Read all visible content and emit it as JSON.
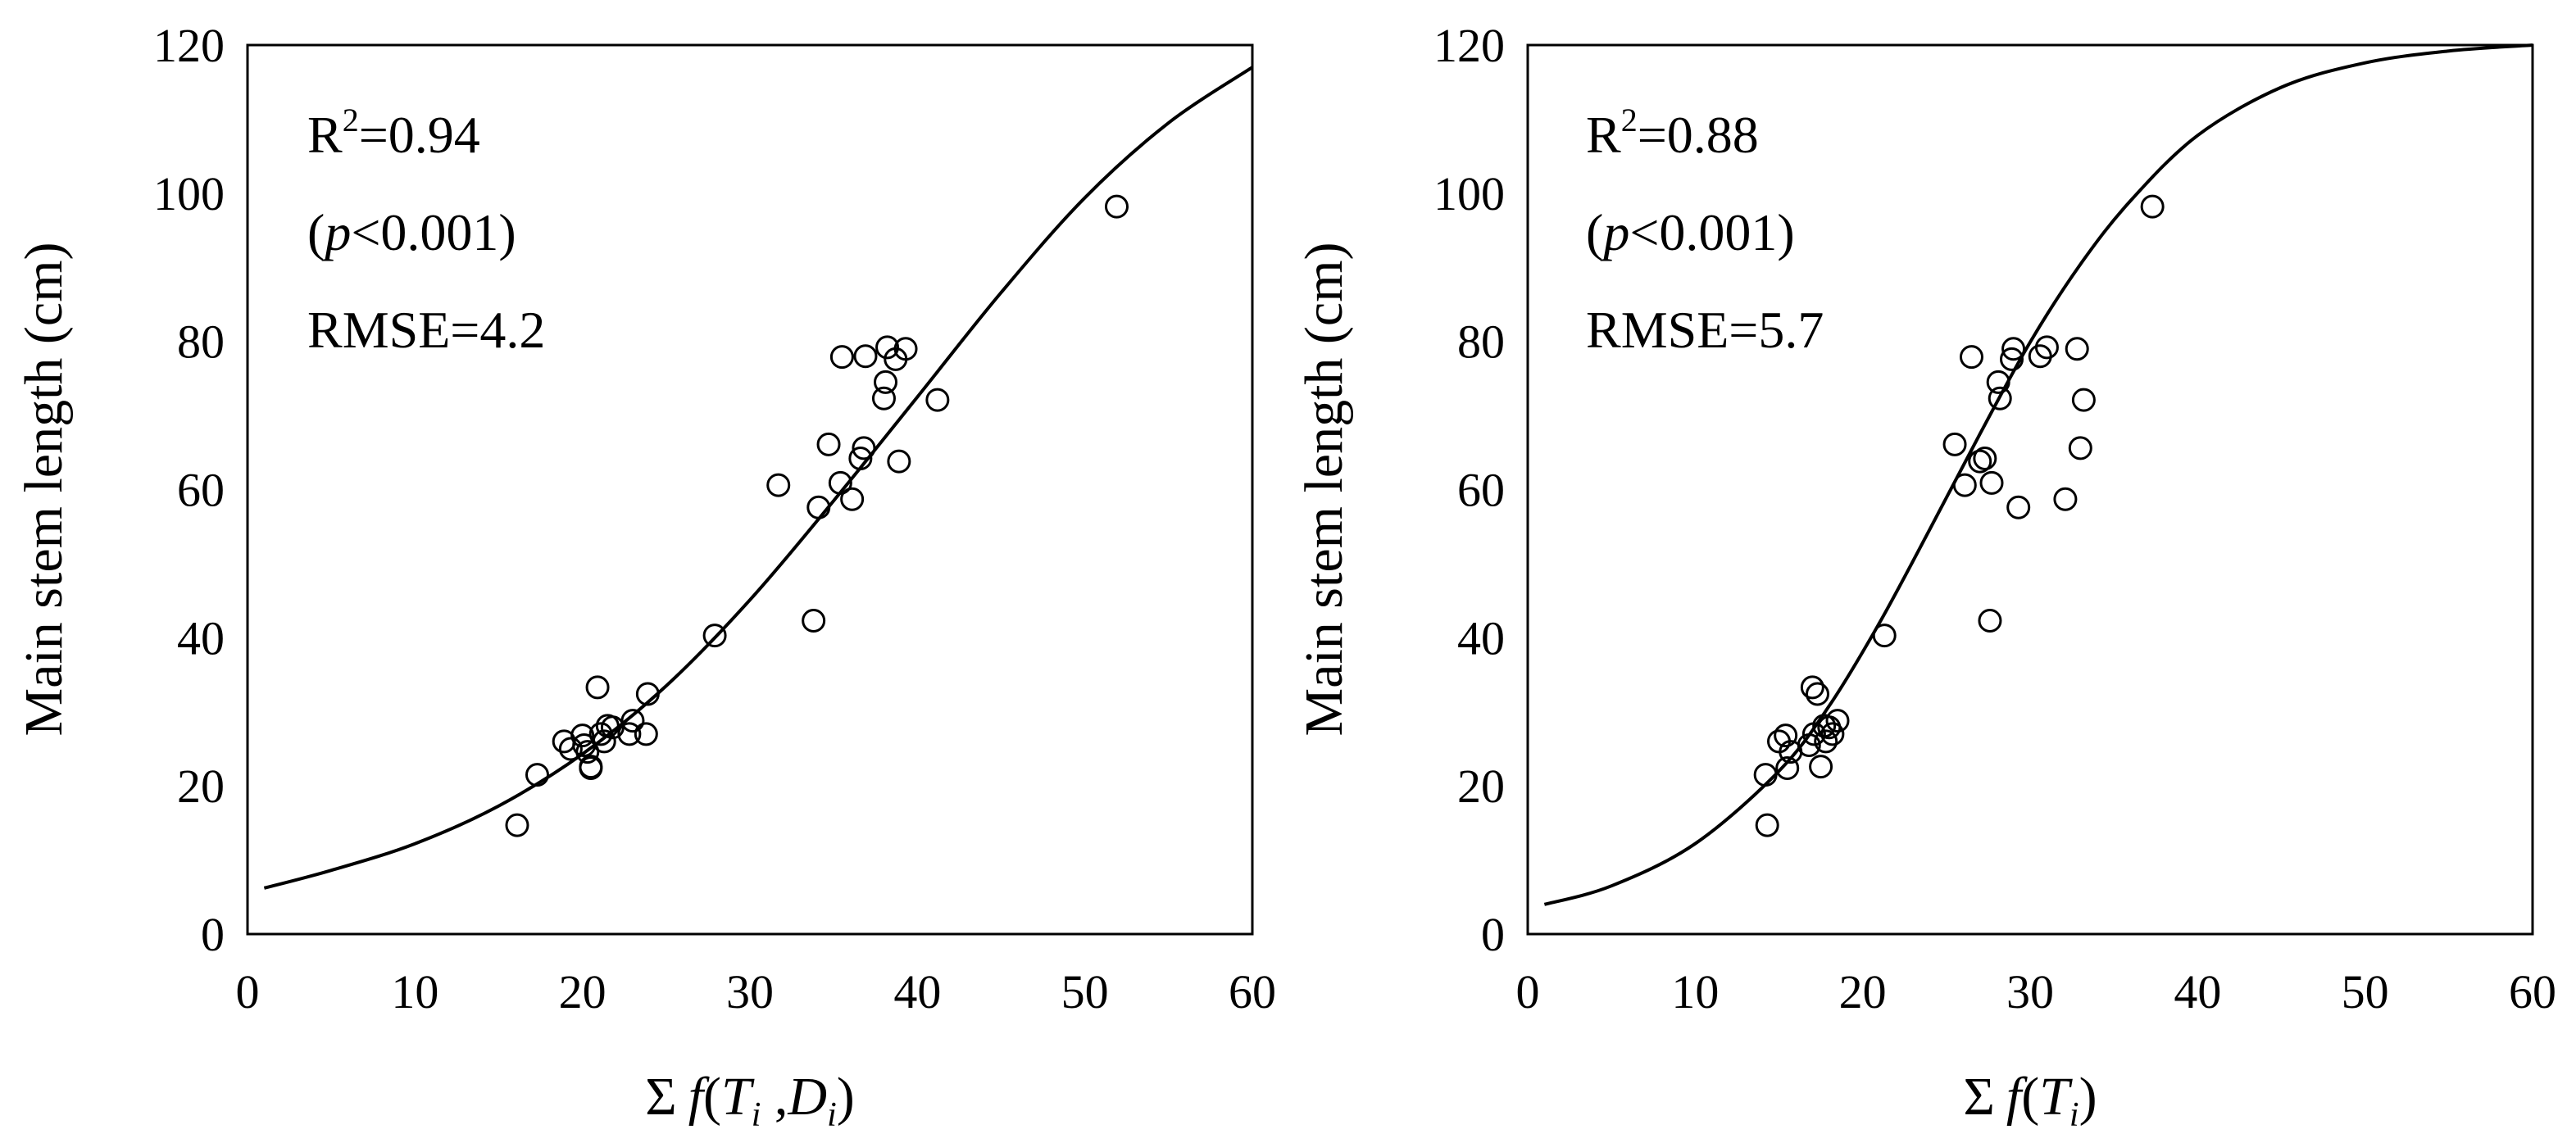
{
  "chart_data": [
    {
      "type": "scatter",
      "panel": "left",
      "xlabel": {
        "prefix": "Σ",
        "func": "f",
        "open": "(",
        "var1": "T",
        "sub1": "i",
        "sep": " ,",
        "var2": "D",
        "sub2": "i",
        "close": ")"
      },
      "ylabel": "Main stem length  (cm)",
      "xlim": [
        0,
        60
      ],
      "ylim": [
        0,
        120
      ],
      "xticks": [
        "0",
        "10",
        "20",
        "30",
        "40",
        "50",
        "60"
      ],
      "yticks": [
        "0",
        "20",
        "40",
        "60",
        "80",
        "100",
        "120"
      ],
      "annotations": {
        "r2_base": "R",
        "r2_exp": "2",
        "r2_value": "=0.94",
        "p_open": "(",
        "p_var": "p",
        "p_rest": "<0.001)",
        "rmse": "RMSE=4.2"
      },
      "series": [
        {
          "name": "observed",
          "kind": "points",
          "x": [
            16.1,
            17.3,
            18.9,
            19.3,
            20,
            20.1,
            20.3,
            20.5,
            20.5,
            20.9,
            21.1,
            21.3,
            21.5,
            21.8,
            22.8,
            23,
            23.8,
            23.9,
            27.9,
            31.7,
            33.8,
            34.1,
            34.7,
            35.4,
            35.5,
            36.1,
            36.6,
            36.8,
            36.9,
            38,
            38.1,
            38.2,
            38.7,
            38.9,
            39.3,
            41.2,
            51.9
          ],
          "y": [
            14.7,
            21.5,
            26,
            25,
            26.8,
            25.5,
            24.6,
            22.6,
            22.4,
            33.3,
            27,
            26,
            28.1,
            27.9,
            27,
            28.8,
            27,
            32.4,
            40.3,
            60.6,
            42.3,
            57.6,
            66.1,
            60.9,
            77.9,
            58.7,
            64.2,
            65.6,
            78,
            72.3,
            74.5,
            79.2,
            77.6,
            63.8,
            79,
            72.1,
            98.2
          ]
        },
        {
          "name": "fitted",
          "kind": "curve",
          "x": [
            1,
            5,
            10,
            15,
            20,
            25,
            30,
            35,
            40,
            45,
            50,
            55,
            60
          ],
          "y": [
            6.2,
            8.6,
            12.2,
            17.3,
            24.3,
            33.5,
            45.1,
            58.5,
            72.5,
            86.6,
            99.4,
            109.5,
            117
          ]
        }
      ]
    },
    {
      "type": "scatter",
      "panel": "right",
      "xlabel": {
        "prefix": "Σ",
        "func": "f",
        "open": "(",
        "var1": "T",
        "sub1": "i",
        "close": ")"
      },
      "ylabel": "Main stem length  (cm)",
      "xlim": [
        0,
        60
      ],
      "ylim": [
        0,
        120
      ],
      "xticks": [
        "0",
        "10",
        "20",
        "30",
        "40",
        "50",
        "60"
      ],
      "yticks": [
        "0",
        "20",
        "40",
        "60",
        "80",
        "100",
        "120"
      ],
      "annotations": {
        "r2_base": "R",
        "r2_exp": "2",
        "r2_value": "=0.88",
        "p_open": "(",
        "p_var": "p",
        "p_rest": "<0.001)",
        "rmse": "RMSE=5.7"
      },
      "series": [
        {
          "name": "observed",
          "kind": "points",
          "x": [
            14.2,
            14.3,
            15,
            15.4,
            15.5,
            15.7,
            16.8,
            17,
            17.1,
            17.3,
            17.5,
            17.7,
            17.8,
            18,
            18.2,
            18.5,
            21.3,
            25.5,
            26.1,
            26.5,
            27,
            27.3,
            27.6,
            27.7,
            28.1,
            28.2,
            28.9,
            29,
            29.3,
            30.6,
            31,
            32.1,
            32.8,
            33,
            33.2,
            37.3
          ],
          "y": [
            21.5,
            14.7,
            26,
            26.8,
            22.4,
            24.6,
            25.5,
            33.3,
            27,
            32.4,
            22.6,
            28.1,
            26,
            27.9,
            27,
            28.8,
            40.3,
            66.1,
            60.6,
            77.9,
            63.8,
            64.2,
            42.3,
            60.9,
            74.5,
            72.3,
            77.6,
            79,
            57.6,
            78,
            79.2,
            58.7,
            79,
            65.6,
            72.1,
            98.2
          ]
        },
        {
          "name": "fitted",
          "kind": "curve",
          "x": [
            1,
            5,
            10,
            15,
            18,
            21,
            24,
            27,
            30,
            33,
            36,
            40,
            45,
            50,
            55,
            60
          ],
          "y": [
            4,
            6.5,
            12.2,
            22,
            30.8,
            42,
            54.6,
            67.5,
            79.9,
            90.4,
            99,
            107.8,
            114.3,
            117.6,
            119.2,
            120
          ]
        }
      ]
    }
  ]
}
